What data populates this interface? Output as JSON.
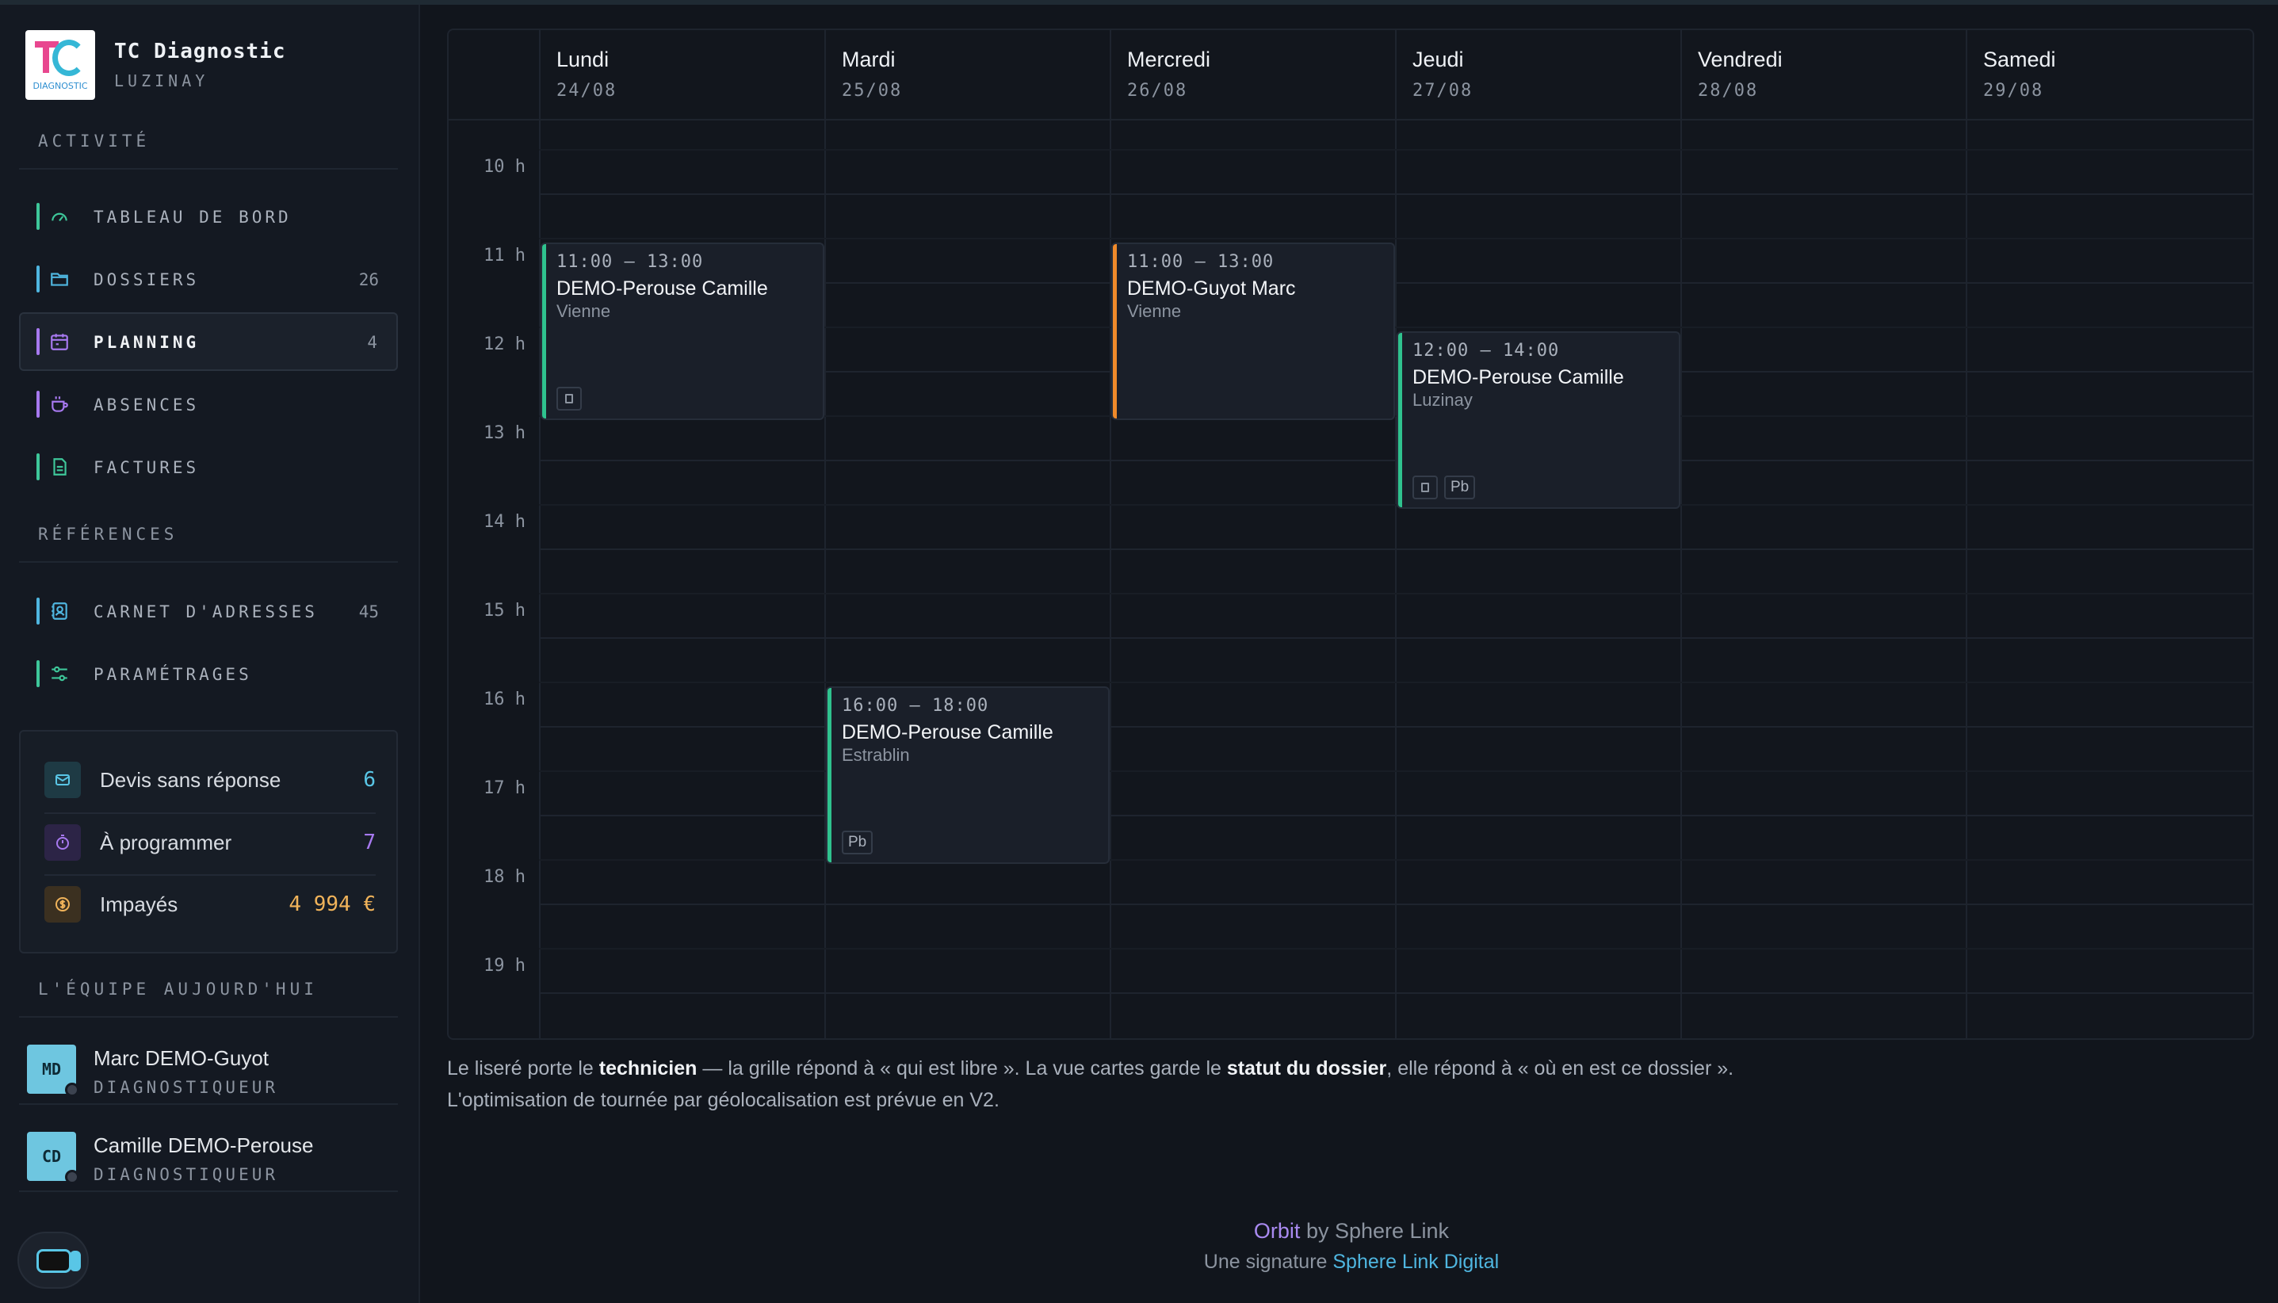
{
  "brand": {
    "name": "TC Diagnostic",
    "location": "LUZINAY",
    "logo_text": "DIAGNOSTIC"
  },
  "sidebar": {
    "activity_title": "ACTIVITÉ",
    "activity_items": [
      {
        "label": "TABLEAU DE BORD",
        "count": "",
        "icon": "gauge-icon",
        "color": "#3ec79a"
      },
      {
        "label": "DOSSIERS",
        "count": "26",
        "icon": "folder-icon",
        "color": "#4fb6e0"
      },
      {
        "label": "PLANNING",
        "count": "4",
        "icon": "calendar-icon",
        "color": "#a779f0",
        "active": true
      },
      {
        "label": "ABSENCES",
        "count": "",
        "icon": "coffee-icon",
        "color": "#a779f0"
      },
      {
        "label": "FACTURES",
        "count": "",
        "icon": "document-icon",
        "color": "#3ec79a"
      }
    ],
    "references_title": "RÉFÉRENCES",
    "reference_items": [
      {
        "label": "CARNET D'ADRESSES",
        "count": "45",
        "icon": "contact-book-icon",
        "color": "#4fb6e0"
      },
      {
        "label": "PARAMÉTRAGES",
        "count": "",
        "icon": "sliders-icon",
        "color": "#3ec79a"
      }
    ],
    "stats": [
      {
        "label": "Devis sans réponse",
        "value": "6",
        "icon": "mail-icon",
        "color": "#59c6e6"
      },
      {
        "label": "À programmer",
        "value": "7",
        "icon": "timer-icon",
        "color": "#a779f0"
      },
      {
        "label": "Impayés",
        "value": "4 994 €",
        "icon": "coin-icon",
        "color": "#f0b35a"
      }
    ],
    "team_title": "L'ÉQUIPE AUJOURD'HUI",
    "team": [
      {
        "initials": "MD",
        "name": "Marc DEMO-Guyot",
        "role": "DIAGNOSTIQUEUR"
      },
      {
        "initials": "CD",
        "name": "Camille DEMO-Perouse",
        "role": "DIAGNOSTIQUEUR"
      }
    ]
  },
  "calendar": {
    "days": [
      {
        "name": "Lundi",
        "date": "24/08"
      },
      {
        "name": "Mardi",
        "date": "25/08"
      },
      {
        "name": "Mercredi",
        "date": "26/08"
      },
      {
        "name": "Jeudi",
        "date": "27/08"
      },
      {
        "name": "Vendredi",
        "date": "28/08"
      },
      {
        "name": "Samedi",
        "date": "29/08"
      }
    ],
    "hours": [
      "10 h",
      "11 h",
      "12 h",
      "13 h",
      "14 h",
      "15 h",
      "16 h",
      "17 h",
      "18 h",
      "19 h"
    ],
    "events": [
      {
        "time": "11:00 – 13:00",
        "title": "DEMO-Perouse Camille",
        "place": "Vienne",
        "color": "#2fc28e",
        "tags": [
          "sq"
        ]
      },
      {
        "time": "11:00 – 13:00",
        "title": "DEMO-Guyot Marc",
        "place": "Vienne",
        "color": "#f08a2a",
        "tags": []
      },
      {
        "time": "12:00 – 14:00",
        "title": "DEMO-Perouse Camille",
        "place": "Luzinay",
        "color": "#2fc28e",
        "tags": [
          "sq",
          "Pb"
        ]
      },
      {
        "time": "16:00 – 18:00",
        "title": "DEMO-Perouse Camille",
        "place": "Estrablin",
        "color": "#2fc28e",
        "tags": [
          "Pb"
        ]
      }
    ]
  },
  "note": {
    "l1_a": "Le liseré porte le ",
    "l1_b": "technicien",
    "l1_c": " — la grille répond à « qui est libre ». La vue cartes garde le ",
    "l1_d": "statut du dossier",
    "l1_e": ", elle répond à « où en est ce dossier ».",
    "l2": "L'optimisation de tournée par géolocalisation est prévue en V2."
  },
  "footer": {
    "orbit": "Orbit",
    "by": " by Sphere Link",
    "signature": "Une signature ",
    "signature_link": "Sphere Link Digital",
    "orbit_color": "#a98af0",
    "link_color": "#4fb6e0"
  }
}
